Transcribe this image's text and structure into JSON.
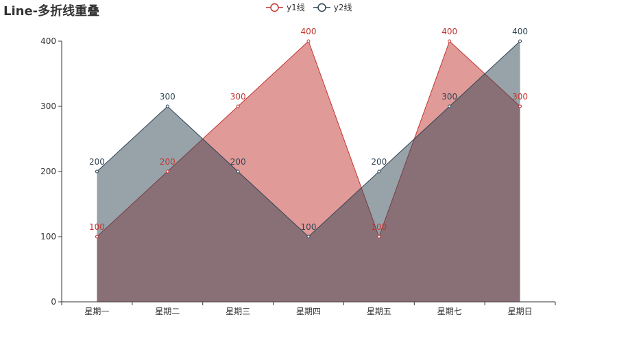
{
  "chart_data": {
    "type": "area",
    "title": "Line-多折线重叠",
    "categories": [
      "星期一",
      "星期二",
      "星期三",
      "星期四",
      "星期五",
      "星期七",
      "星期日"
    ],
    "series": [
      {
        "name": "y1线",
        "values": [
          100,
          200,
          300,
          400,
          100,
          400,
          300
        ],
        "color": "#c23531"
      },
      {
        "name": "y2线",
        "values": [
          200,
          300,
          200,
          100,
          200,
          300,
          400
        ],
        "color": "#2f4554"
      }
    ],
    "ylim": [
      0,
      400
    ],
    "yticks": [
      0,
      100,
      200,
      300,
      400
    ],
    "xlabel": "",
    "ylabel": "",
    "legend_position": "top-center",
    "grid": false
  }
}
